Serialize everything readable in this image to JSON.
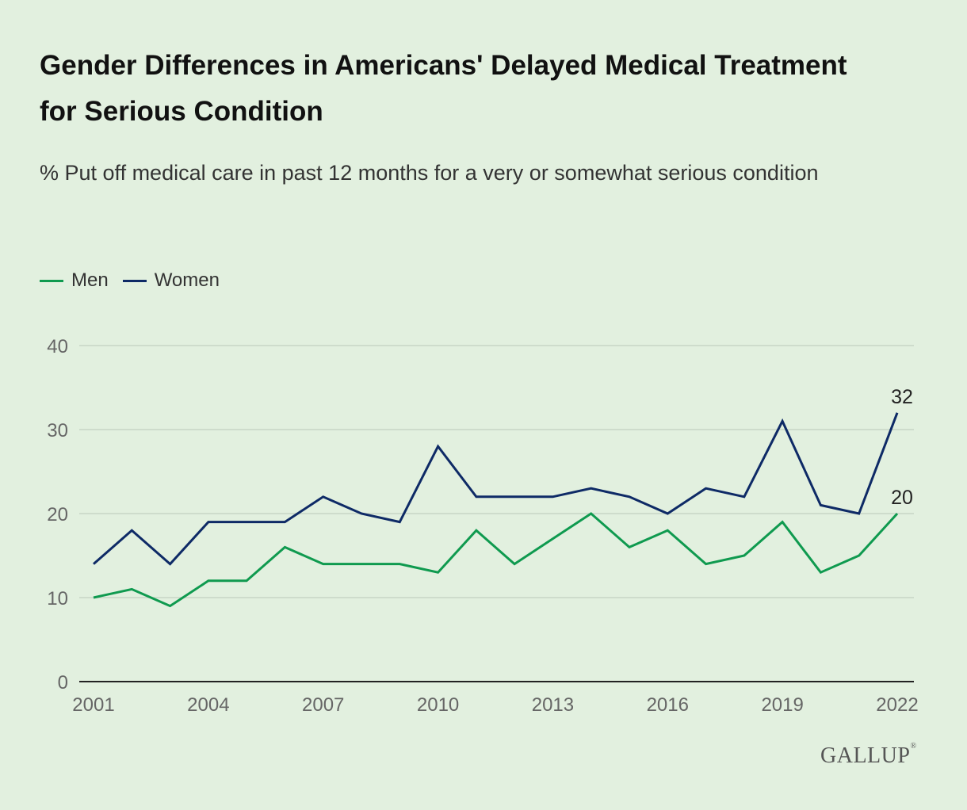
{
  "title": "Gender Differences in Americans' Delayed Medical Treatment for Serious Condition",
  "subtitle": "% Put off medical care in past 12 months for a very or somewhat serious condition",
  "legend": {
    "men": "Men",
    "women": "Women"
  },
  "brand": {
    "logo_text": "GALLUP",
    "registered_mark": "®"
  },
  "colors": {
    "background": "#e2f0df",
    "men": "#0f9a4f",
    "women": "#0e2a66",
    "grid": "#c8d5c6",
    "axis": "#222222",
    "tick_text": "#666666",
    "label_text": "#222222"
  },
  "chart_data": {
    "type": "line",
    "x": [
      2001,
      2002,
      2003,
      2004,
      2005,
      2006,
      2007,
      2008,
      2009,
      2010,
      2011,
      2012,
      2013,
      2014,
      2015,
      2016,
      2017,
      2018,
      2019,
      2020,
      2021,
      2022
    ],
    "x_tick_labels": [
      "2001",
      "2004",
      "2007",
      "2010",
      "2013",
      "2016",
      "2019",
      "2022"
    ],
    "y_tick_labels": [
      "0",
      "10",
      "20",
      "30",
      "40"
    ],
    "ylim": [
      0,
      40
    ],
    "grid": true,
    "legend_position": "top-left",
    "series": [
      {
        "name": "Men",
        "color_key": "men",
        "values": [
          10,
          11,
          9,
          12,
          12,
          16,
          14,
          14,
          14,
          13,
          18,
          14,
          17,
          20,
          16,
          18,
          14,
          15,
          19,
          13,
          15,
          20
        ],
        "end_label": "20"
      },
      {
        "name": "Women",
        "color_key": "women",
        "values": [
          14,
          18,
          14,
          19,
          19,
          19,
          22,
          20,
          19,
          28,
          22,
          22,
          22,
          23,
          22,
          20,
          23,
          22,
          31,
          21,
          20,
          32
        ],
        "end_label": "32"
      }
    ]
  }
}
